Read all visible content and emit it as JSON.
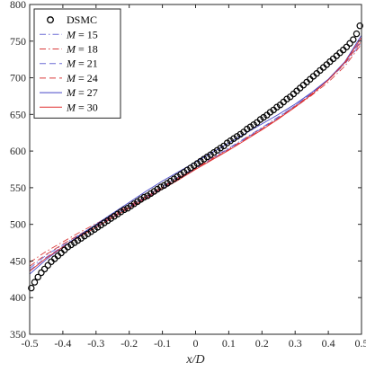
{
  "chart_data": {
    "type": "line",
    "title": "",
    "xlabel": "x/D",
    "ylabel": "",
    "xlim": [
      -0.5,
      0.5
    ],
    "ylim": [
      350,
      800
    ],
    "x_ticks": [
      -0.5,
      -0.4,
      -0.3,
      -0.2,
      -0.1,
      0,
      0.1,
      0.2,
      0.3,
      0.4,
      0.5
    ],
    "x_tick_labels": [
      "-0.5",
      "-0.4",
      "-0.3",
      "-0.2",
      "-0.1",
      "0",
      "0.1",
      "0.2",
      "0.3",
      "0.4",
      "0.5"
    ],
    "y_ticks": [
      350,
      400,
      450,
      500,
      550,
      600,
      650,
      700,
      750,
      800
    ],
    "y_tick_labels": [
      "350",
      "400",
      "450",
      "500",
      "550",
      "600",
      "650",
      "700",
      "750",
      "800"
    ],
    "grid": false,
    "legend_position": "top-left",
    "series": [
      {
        "name": "DSMC",
        "legend_plain": "DSMC",
        "style": "markers",
        "color": "#000000",
        "marker_fill": "#1f3a93",
        "x": [
          -0.495,
          -0.485,
          -0.475,
          -0.465,
          -0.455,
          -0.445,
          -0.435,
          -0.425,
          -0.415,
          -0.405,
          -0.395,
          -0.385,
          -0.375,
          -0.365,
          -0.355,
          -0.345,
          -0.335,
          -0.325,
          -0.315,
          -0.305,
          -0.295,
          -0.285,
          -0.275,
          -0.265,
          -0.255,
          -0.245,
          -0.235,
          -0.225,
          -0.215,
          -0.205,
          -0.195,
          -0.185,
          -0.175,
          -0.165,
          -0.155,
          -0.145,
          -0.135,
          -0.125,
          -0.115,
          -0.105,
          -0.095,
          -0.085,
          -0.075,
          -0.065,
          -0.055,
          -0.045,
          -0.035,
          -0.025,
          -0.015,
          -0.005,
          0.005,
          0.015,
          0.025,
          0.035,
          0.045,
          0.055,
          0.065,
          0.075,
          0.085,
          0.095,
          0.105,
          0.115,
          0.125,
          0.135,
          0.145,
          0.155,
          0.165,
          0.175,
          0.185,
          0.195,
          0.205,
          0.215,
          0.225,
          0.235,
          0.245,
          0.255,
          0.265,
          0.275,
          0.285,
          0.295,
          0.305,
          0.315,
          0.325,
          0.335,
          0.345,
          0.355,
          0.365,
          0.375,
          0.385,
          0.395,
          0.405,
          0.415,
          0.425,
          0.435,
          0.445,
          0.455,
          0.465,
          0.475,
          0.485,
          0.495
        ],
        "y": [
          413,
          421,
          428,
          434,
          439,
          444,
          449,
          453,
          457,
          461,
          465,
          469,
          472,
          475,
          478,
          481,
          484,
          487,
          490,
          493,
          496,
          499,
          502,
          505,
          508,
          511,
          514,
          517,
          520,
          522,
          525,
          528,
          531,
          534,
          537,
          539,
          542,
          545,
          548,
          551,
          553,
          556,
          559,
          562,
          565,
          568,
          571,
          574,
          577,
          580,
          583,
          586,
          589,
          592,
          595,
          598,
          601,
          604,
          607,
          611,
          614,
          617,
          620,
          623,
          626,
          630,
          633,
          636,
          639,
          643,
          646,
          649,
          653,
          656,
          660,
          663,
          667,
          671,
          674,
          678,
          682,
          686,
          690,
          694,
          698,
          702,
          706,
          710,
          714,
          718,
          722,
          726,
          730,
          734,
          738,
          742,
          747,
          752,
          760,
          771
        ]
      },
      {
        "name": "M = 15",
        "legend_math": "M",
        "legend_value": "15",
        "style": "dashdot",
        "color": "#6b6bd6",
        "x": [
          -0.5,
          -0.45,
          -0.4,
          -0.35,
          -0.3,
          -0.25,
          -0.2,
          -0.15,
          -0.1,
          -0.05,
          0,
          0.05,
          0.1,
          0.15,
          0.2,
          0.25,
          0.3,
          0.35,
          0.4,
          0.45,
          0.5
        ],
        "y": [
          440,
          458,
          472,
          486,
          499,
          512,
          525,
          538,
          552,
          565,
          578,
          591,
          604,
          618,
          632,
          647,
          662,
          678,
          697,
          719,
          748
        ]
      },
      {
        "name": "M = 18",
        "legend_math": "M",
        "legend_value": "18",
        "style": "dashdot",
        "color": "#d93a3a",
        "x": [
          -0.5,
          -0.45,
          -0.4,
          -0.35,
          -0.3,
          -0.25,
          -0.2,
          -0.15,
          -0.1,
          -0.05,
          0,
          0.05,
          0.1,
          0.15,
          0.2,
          0.25,
          0.3,
          0.35,
          0.4,
          0.45,
          0.5
        ],
        "y": [
          448,
          463,
          476,
          489,
          501,
          513,
          526,
          538,
          551,
          564,
          577,
          590,
          603,
          617,
          631,
          645,
          660,
          676,
          694,
          716,
          746
        ]
      },
      {
        "name": "M = 21",
        "legend_math": "M",
        "legend_value": "21",
        "style": "dashed",
        "color": "#6b6bd6",
        "x": [
          -0.5,
          -0.45,
          -0.4,
          -0.35,
          -0.3,
          -0.25,
          -0.2,
          -0.15,
          -0.1,
          -0.05,
          0,
          0.05,
          0.1,
          0.15,
          0.2,
          0.25,
          0.3,
          0.35,
          0.4,
          0.45,
          0.5
        ],
        "y": [
          437,
          455,
          470,
          484,
          497,
          510,
          523,
          536,
          549,
          562,
          576,
          589,
          603,
          617,
          631,
          646,
          662,
          679,
          698,
          721,
          752
        ]
      },
      {
        "name": "M = 24",
        "legend_math": "M",
        "legend_value": "24",
        "style": "dashed",
        "color": "#d93a3a",
        "x": [
          -0.5,
          -0.45,
          -0.4,
          -0.35,
          -0.3,
          -0.25,
          -0.2,
          -0.15,
          -0.1,
          -0.05,
          0,
          0.05,
          0.1,
          0.15,
          0.2,
          0.25,
          0.3,
          0.35,
          0.4,
          0.45,
          0.5
        ],
        "y": [
          443,
          459,
          473,
          486,
          499,
          511,
          524,
          537,
          550,
          563,
          576,
          589,
          602,
          616,
          630,
          645,
          661,
          678,
          697,
          720,
          750
        ]
      },
      {
        "name": "M = 27",
        "legend_math": "M",
        "legend_value": "27",
        "style": "solid",
        "color": "#4646c8",
        "x": [
          -0.5,
          -0.45,
          -0.4,
          -0.35,
          -0.3,
          -0.25,
          -0.2,
          -0.15,
          -0.1,
          -0.05,
          0,
          0.05,
          0.1,
          0.15,
          0.2,
          0.25,
          0.3,
          0.35,
          0.4,
          0.45,
          0.5
        ],
        "y": [
          432,
          452,
          469,
          485,
          500,
          515,
          530,
          545,
          559,
          572,
          585,
          598,
          611,
          624,
          637,
          650,
          664,
          680,
          698,
          722,
          758
        ]
      },
      {
        "name": "M = 30",
        "legend_math": "M",
        "legend_value": "30",
        "style": "solid",
        "color": "#e03030",
        "x": [
          -0.5,
          -0.45,
          -0.4,
          -0.35,
          -0.3,
          -0.25,
          -0.2,
          -0.15,
          -0.1,
          -0.05,
          0,
          0.05,
          0.1,
          0.15,
          0.2,
          0.25,
          0.3,
          0.35,
          0.4,
          0.45,
          0.5
        ],
        "y": [
          436,
          454,
          469,
          483,
          496,
          509,
          522,
          535,
          548,
          561,
          575,
          588,
          601,
          615,
          629,
          644,
          660,
          677,
          697,
          721,
          755
        ]
      }
    ]
  }
}
